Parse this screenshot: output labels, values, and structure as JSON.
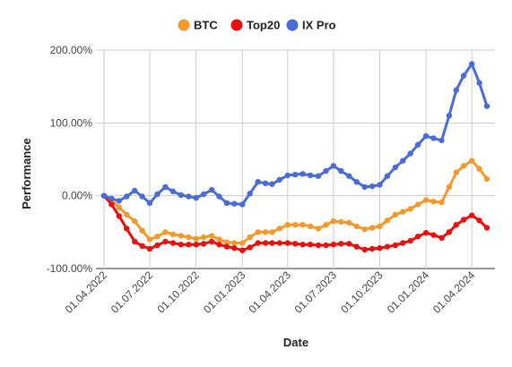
{
  "chart_data": {
    "type": "line",
    "xlabel": "Date",
    "ylabel": "Performance",
    "ylim": [
      -100,
      200
    ],
    "yticks": [
      {
        "value": 200,
        "label": "200.00%"
      },
      {
        "value": 100,
        "label": "100.00%"
      },
      {
        "value": 0,
        "label": "0.00%"
      },
      {
        "value": -100,
        "label": "-100.00%"
      }
    ],
    "xlim": [
      "2022-03-16",
      "2024-05-17"
    ],
    "xticks": [
      {
        "date": "2022-04-01",
        "label": "01.04.2022"
      },
      {
        "date": "2022-07-01",
        "label": "01.07.2022"
      },
      {
        "date": "2022-10-01",
        "label": "01.10.2022"
      },
      {
        "date": "2023-01-01",
        "label": "01.01.2023"
      },
      {
        "date": "2023-04-01",
        "label": "01.04.2023"
      },
      {
        "date": "2023-07-01",
        "label": "01.07.2023"
      },
      {
        "date": "2023-10-01",
        "label": "01.10.2023"
      },
      {
        "date": "2024-01-01",
        "label": "01.01.2024"
      },
      {
        "date": "2024-04-01",
        "label": "01.04.2024"
      }
    ],
    "grid": true,
    "legend_position": "top",
    "x": [
      "2022-04-01",
      "2022-04-16",
      "2022-05-01",
      "2022-05-16",
      "2022-06-01",
      "2022-06-16",
      "2022-07-01",
      "2022-07-16",
      "2022-08-01",
      "2022-08-16",
      "2022-09-01",
      "2022-09-16",
      "2022-10-01",
      "2022-10-16",
      "2022-11-01",
      "2022-11-16",
      "2022-12-01",
      "2022-12-16",
      "2023-01-01",
      "2023-01-16",
      "2023-02-01",
      "2023-02-16",
      "2023-03-01",
      "2023-03-16",
      "2023-04-01",
      "2023-04-16",
      "2023-05-01",
      "2023-05-16",
      "2023-06-01",
      "2023-06-16",
      "2023-07-01",
      "2023-07-16",
      "2023-08-01",
      "2023-08-16",
      "2023-09-01",
      "2023-09-16",
      "2023-10-01",
      "2023-10-16",
      "2023-11-01",
      "2023-11-16",
      "2023-12-01",
      "2023-12-16",
      "2024-01-01",
      "2024-01-16",
      "2024-02-01",
      "2024-02-16",
      "2024-03-01",
      "2024-03-16",
      "2024-04-01",
      "2024-04-16",
      "2024-05-01"
    ],
    "series": [
      {
        "name": "BTC",
        "color": "#f29a2e",
        "values": [
          0,
          -6,
          -16,
          -26,
          -35,
          -48,
          -60,
          -56,
          -50,
          -53,
          -55,
          -57,
          -59,
          -57,
          -55,
          -60,
          -64,
          -65,
          -65,
          -57,
          -50,
          -50,
          -50,
          -45,
          -40,
          -40,
          -40,
          -42,
          -45,
          -40,
          -35,
          -36,
          -37,
          -42,
          -46,
          -44,
          -42,
          -34,
          -26,
          -22,
          -18,
          -12,
          -6,
          -8,
          -9,
          12,
          32,
          41,
          48,
          37,
          23
        ]
      },
      {
        "name": "Top20",
        "color": "#e8110f",
        "values": [
          0,
          -12,
          -28,
          -45,
          -63,
          -69,
          -73,
          -68,
          -63,
          -65,
          -67,
          -67,
          -67,
          -66,
          -63,
          -67,
          -70,
          -72,
          -75,
          -71,
          -65,
          -65,
          -65,
          -65,
          -65,
          -66,
          -67,
          -67,
          -68,
          -68,
          -67,
          -66,
          -66,
          -70,
          -74,
          -73,
          -72,
          -70,
          -68,
          -65,
          -62,
          -56,
          -51,
          -54,
          -58,
          -50,
          -40,
          -33,
          -27,
          -34,
          -44
        ]
      },
      {
        "name": "IX Pro",
        "color": "#4a6cd4",
        "values": [
          0,
          -4,
          -7,
          -1,
          7,
          -1,
          -10,
          2,
          12,
          6,
          1,
          -1,
          -3,
          2,
          8,
          -1,
          -10,
          -11,
          -12,
          3,
          19,
          17,
          16,
          22,
          28,
          29,
          30,
          28,
          27,
          34,
          41,
          34,
          27,
          19,
          12,
          13,
          15,
          27,
          39,
          48,
          58,
          70,
          82,
          79,
          76,
          110,
          145,
          165,
          181,
          155,
          123
        ]
      }
    ]
  }
}
